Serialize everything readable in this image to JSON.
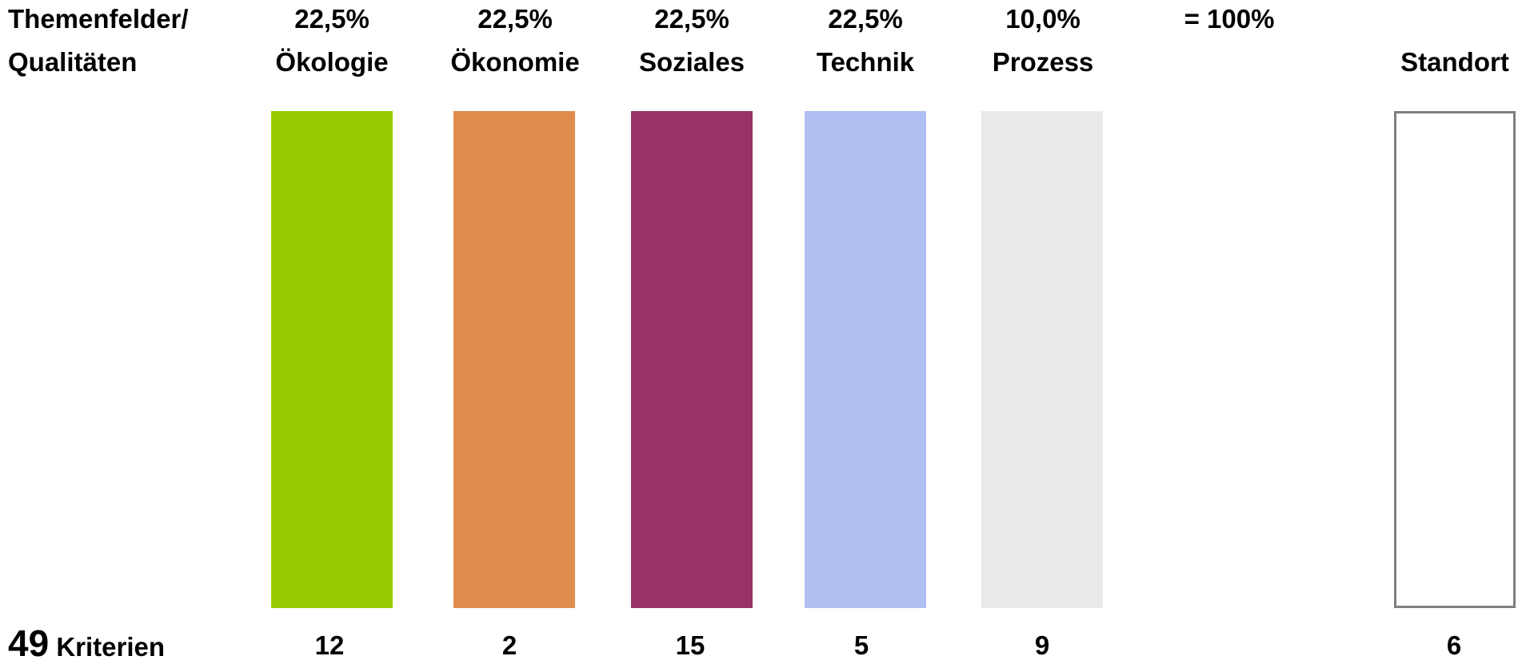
{
  "header": {
    "label_line1": "Themenfelder/",
    "label_line2": "Qualitäten",
    "total": "= 100%"
  },
  "columns": [
    {
      "percent": "22,5%",
      "name": "Ökologie",
      "count": "12",
      "color": "#99cc00"
    },
    {
      "percent": "22,5%",
      "name": "Ökonomie",
      "count": "2",
      "color": "#e08c4c"
    },
    {
      "percent": "22,5%",
      "name": "Soziales",
      "count": "15",
      "color": "#993366"
    },
    {
      "percent": "22,5%",
      "name": "Technik",
      "count": "5",
      "color": "#b0bff2"
    },
    {
      "percent": "10,0%",
      "name": "Prozess",
      "count": "9",
      "color": "#eaeaea"
    }
  ],
  "standort": {
    "name": "Standort",
    "count": "6",
    "border_color": "#7f7f7f"
  },
  "footer": {
    "total_count": "49",
    "total_label": "Kriterien"
  }
}
